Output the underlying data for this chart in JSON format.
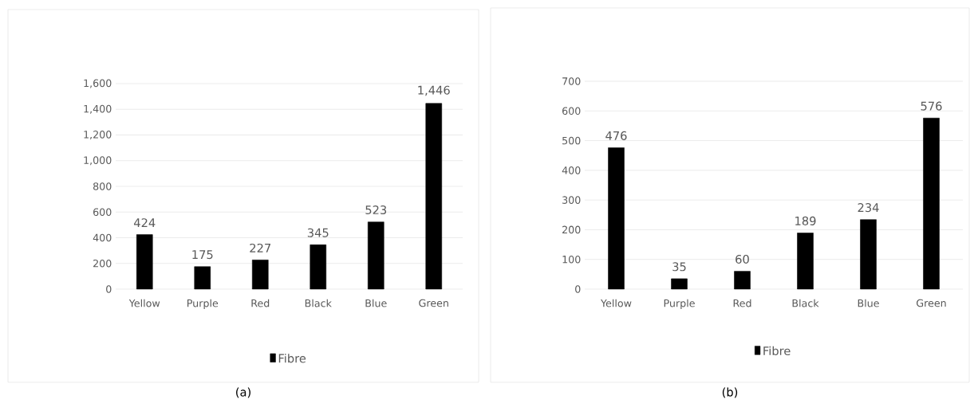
{
  "chart_data": [
    {
      "type": "bar",
      "categories": [
        "Yellow",
        "Purple",
        "Red",
        "Black",
        "Blue",
        "Green"
      ],
      "series": [
        {
          "name": "Fibre",
          "color": "#000000",
          "values": [
            424,
            175,
            227,
            345,
            523,
            1446
          ],
          "value_labels": [
            "424",
            "175",
            "227",
            "345",
            "523",
            "1,446"
          ]
        }
      ],
      "ylim": [
        0,
        1600
      ],
      "yticks": [
        0,
        200,
        400,
        600,
        800,
        {
          "value": 1000,
          "label": "1,000"
        },
        {
          "value": 1200,
          "label": "1,200"
        },
        {
          "value": 1400,
          "label": "1,400"
        },
        {
          "value": 1600,
          "label": "1,600"
        }
      ],
      "grid": "y",
      "legend": "bottom",
      "annotations": [
        "(a)"
      ]
    },
    {
      "type": "bar",
      "categories": [
        "Yellow",
        "Purple",
        "Red",
        "Black",
        "Blue",
        "Green"
      ],
      "series": [
        {
          "name": "Fibre",
          "color": "#000000",
          "values": [
            476,
            35,
            60,
            189,
            234,
            576
          ],
          "value_labels": [
            "476",
            "35",
            "60",
            "189",
            "234",
            "576"
          ]
        }
      ],
      "ylim": [
        0,
        700
      ],
      "yticks": [
        0,
        100,
        200,
        300,
        400,
        500,
        600,
        700
      ],
      "grid": "y",
      "legend": "bottom",
      "annotations": [
        "(b)"
      ]
    }
  ]
}
